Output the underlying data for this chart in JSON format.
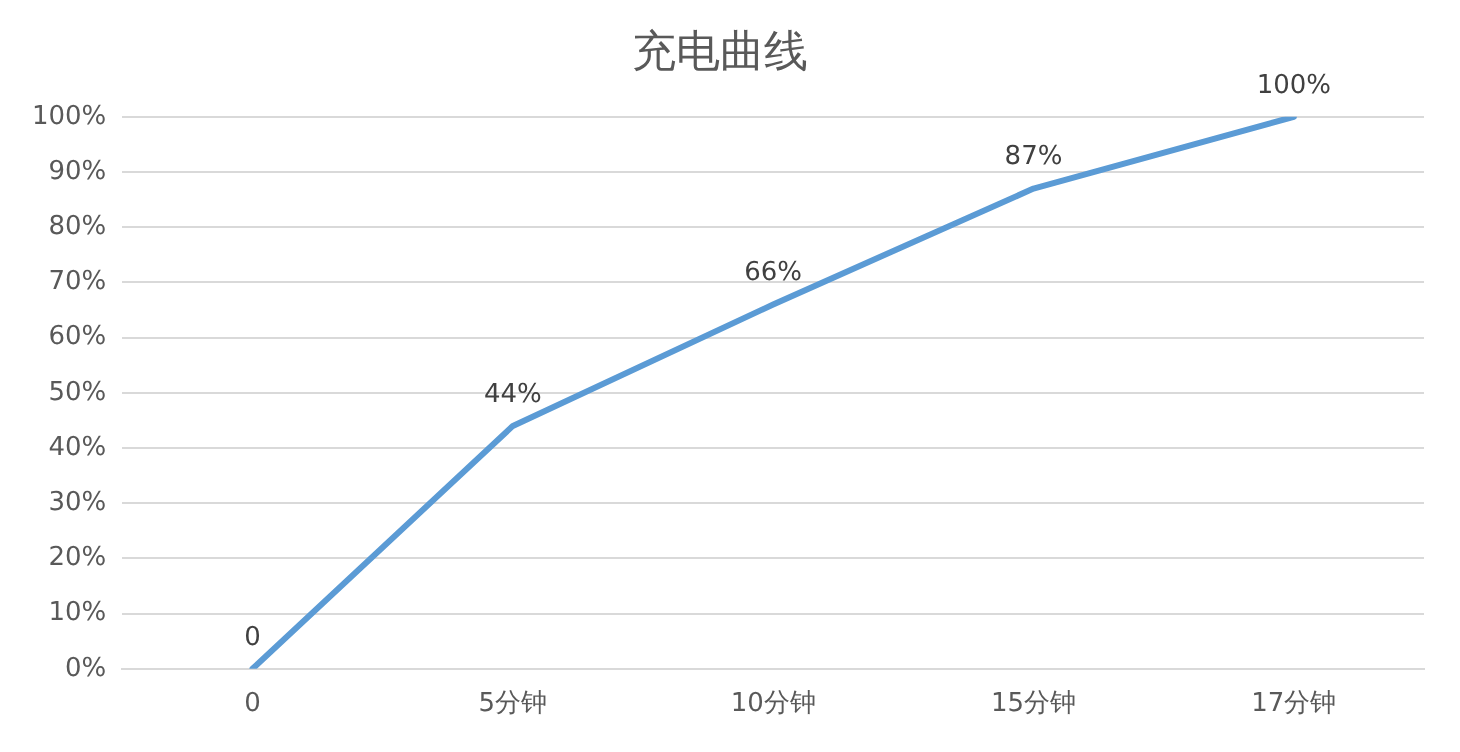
{
  "chart_data": {
    "type": "line",
    "title": "充电曲线",
    "categories": [
      "0",
      "5分钟",
      "10分钟",
      "15分钟",
      "17分钟"
    ],
    "series": [
      {
        "color": "#5b9bd5",
        "values": [
          0,
          44,
          66,
          87,
          100
        ],
        "value_labels": [
          "0",
          "44%",
          "66%",
          "87%",
          "100%"
        ]
      }
    ],
    "ylim": [
      0,
      100
    ],
    "yticks": [
      {
        "value": 0,
        "label": "0%"
      },
      {
        "value": 10,
        "label": "10%"
      },
      {
        "value": 20,
        "label": "20%"
      },
      {
        "value": 30,
        "label": "30%"
      },
      {
        "value": 40,
        "label": "40%"
      },
      {
        "value": 50,
        "label": "50%"
      },
      {
        "value": 60,
        "label": "60%"
      },
      {
        "value": 70,
        "label": "70%"
      },
      {
        "value": 80,
        "label": "80%"
      },
      {
        "value": 90,
        "label": "90%"
      },
      {
        "value": 100,
        "label": "100%"
      }
    ],
    "grid": "y",
    "marker": "none",
    "line_style": "solid"
  }
}
